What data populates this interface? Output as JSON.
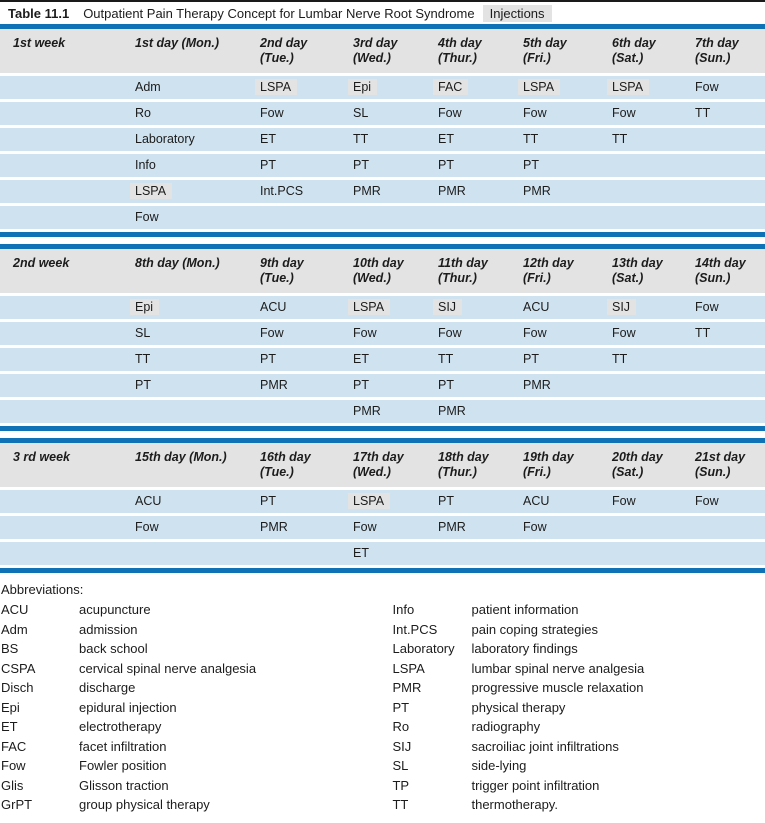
{
  "title": {
    "number": "Table 11.1",
    "caption": "Outpatient Pain Therapy Concept for Lumbar Nerve Root Syndrome",
    "tag": "Injections"
  },
  "weeks": [
    {
      "label": "1st week",
      "days": [
        {
          "l1": "1st day (Mon.)",
          "l2": ""
        },
        {
          "l1": "2nd day",
          "l2": "(Tue.)"
        },
        {
          "l1": "3rd day",
          "l2": "(Wed.)"
        },
        {
          "l1": "4th day",
          "l2": "(Thur.)"
        },
        {
          "l1": "5th day",
          "l2": "(Fri.)"
        },
        {
          "l1": "6th day",
          "l2": "(Sat.)"
        },
        {
          "l1": "7th day",
          "l2": "(Sun.)"
        }
      ],
      "rows": [
        [
          {
            "t": "Adm"
          },
          {
            "t": "LSPA",
            "h": true
          },
          {
            "t": "Epi",
            "h": true
          },
          {
            "t": "FAC",
            "h": true
          },
          {
            "t": "LSPA",
            "h": true
          },
          {
            "t": "LSPA",
            "h": true
          },
          {
            "t": "Fow"
          }
        ],
        [
          {
            "t": "Ro"
          },
          {
            "t": "Fow"
          },
          {
            "t": "SL"
          },
          {
            "t": "Fow"
          },
          {
            "t": "Fow"
          },
          {
            "t": "Fow"
          },
          {
            "t": "TT"
          }
        ],
        [
          {
            "t": "Laboratory"
          },
          {
            "t": "ET"
          },
          {
            "t": "TT"
          },
          {
            "t": "ET"
          },
          {
            "t": "TT"
          },
          {
            "t": "TT"
          },
          {
            "t": ""
          }
        ],
        [
          {
            "t": "Info"
          },
          {
            "t": "PT"
          },
          {
            "t": "PT"
          },
          {
            "t": "PT"
          },
          {
            "t": "PT"
          },
          {
            "t": ""
          },
          {
            "t": ""
          }
        ],
        [
          {
            "t": "LSPA",
            "h": true
          },
          {
            "t": "Int.PCS"
          },
          {
            "t": "PMR"
          },
          {
            "t": "PMR"
          },
          {
            "t": "PMR"
          },
          {
            "t": ""
          },
          {
            "t": ""
          }
        ],
        [
          {
            "t": "Fow"
          },
          {
            "t": ""
          },
          {
            "t": ""
          },
          {
            "t": ""
          },
          {
            "t": ""
          },
          {
            "t": ""
          },
          {
            "t": ""
          }
        ]
      ]
    },
    {
      "label": "2nd week",
      "days": [
        {
          "l1": "8th day (Mon.)",
          "l2": ""
        },
        {
          "l1": "9th day",
          "l2": "(Tue.)"
        },
        {
          "l1": "10th day",
          "l2": "(Wed.)"
        },
        {
          "l1": "11th day",
          "l2": "(Thur.)"
        },
        {
          "l1": "12th day",
          "l2": "(Fri.)"
        },
        {
          "l1": "13th day",
          "l2": "(Sat.)"
        },
        {
          "l1": "14th day",
          "l2": "(Sun.)"
        }
      ],
      "rows": [
        [
          {
            "t": "Epi",
            "h": true
          },
          {
            "t": "ACU"
          },
          {
            "t": "LSPA",
            "h": true
          },
          {
            "t": "SIJ",
            "h": true
          },
          {
            "t": "ACU"
          },
          {
            "t": "SIJ",
            "h": true
          },
          {
            "t": "Fow"
          }
        ],
        [
          {
            "t": "SL"
          },
          {
            "t": "Fow"
          },
          {
            "t": "Fow"
          },
          {
            "t": "Fow"
          },
          {
            "t": "Fow"
          },
          {
            "t": "Fow"
          },
          {
            "t": "TT"
          }
        ],
        [
          {
            "t": "TT"
          },
          {
            "t": "PT"
          },
          {
            "t": "ET"
          },
          {
            "t": "TT"
          },
          {
            "t": "PT"
          },
          {
            "t": "TT"
          },
          {
            "t": ""
          }
        ],
        [
          {
            "t": "PT"
          },
          {
            "t": "PMR"
          },
          {
            "t": "PT"
          },
          {
            "t": "PT"
          },
          {
            "t": "PMR"
          },
          {
            "t": ""
          },
          {
            "t": ""
          }
        ],
        [
          {
            "t": ""
          },
          {
            "t": ""
          },
          {
            "t": "PMR"
          },
          {
            "t": "PMR"
          },
          {
            "t": ""
          },
          {
            "t": ""
          },
          {
            "t": ""
          }
        ]
      ]
    },
    {
      "label": "3 rd week",
      "days": [
        {
          "l1": "15th day (Mon.)",
          "l2": ""
        },
        {
          "l1": "16th day",
          "l2": "(Tue.)"
        },
        {
          "l1": "17th day",
          "l2": "(Wed.)"
        },
        {
          "l1": "18th day",
          "l2": "(Thur.)"
        },
        {
          "l1": "19th day",
          "l2": "(Fri.)"
        },
        {
          "l1": "20th day",
          "l2": "(Sat.)"
        },
        {
          "l1": "21st day",
          "l2": "(Sun.)"
        }
      ],
      "rows": [
        [
          {
            "t": "ACU"
          },
          {
            "t": "PT"
          },
          {
            "t": "LSPA",
            "h": true
          },
          {
            "t": "PT"
          },
          {
            "t": "ACU"
          },
          {
            "t": "Fow"
          },
          {
            "t": "Fow"
          }
        ],
        [
          {
            "t": "Fow"
          },
          {
            "t": "PMR"
          },
          {
            "t": "Fow"
          },
          {
            "t": "PMR"
          },
          {
            "t": "Fow"
          },
          {
            "t": ""
          },
          {
            "t": ""
          }
        ],
        [
          {
            "t": ""
          },
          {
            "t": ""
          },
          {
            "t": "ET"
          },
          {
            "t": ""
          },
          {
            "t": ""
          },
          {
            "t": ""
          },
          {
            "t": ""
          }
        ]
      ]
    }
  ],
  "abbreviations": {
    "heading": "Abbreviations:",
    "left": [
      {
        "term": "ACU",
        "def": "acupuncture"
      },
      {
        "term": "Adm",
        "def": "admission"
      },
      {
        "term": "BS",
        "def": "back school"
      },
      {
        "term": "CSPA",
        "def": "cervical spinal nerve analgesia"
      },
      {
        "term": "Disch",
        "def": "discharge"
      },
      {
        "term": "Epi",
        "def": "epidural injection"
      },
      {
        "term": "ET",
        "def": "electrotherapy"
      },
      {
        "term": "FAC",
        "def": "facet infiltration"
      },
      {
        "term": "Fow",
        "def": "Fowler position"
      },
      {
        "term": "Glis",
        "def": "Glisson traction"
      },
      {
        "term": "GrPT",
        "def": "group physical therapy"
      }
    ],
    "right": [
      {
        "term": "Info",
        "def": "patient information"
      },
      {
        "term": "Int.PCS",
        "def": "pain coping strategies"
      },
      {
        "term": "Laboratory",
        "def": "laboratory findings"
      },
      {
        "term": "LSPA",
        "def": "lumbar spinal nerve analgesia"
      },
      {
        "term": "PMR",
        "def": "progressive muscle relaxation"
      },
      {
        "term": "PT",
        "def": "physical therapy"
      },
      {
        "term": "Ro",
        "def": "radiography"
      },
      {
        "term": "SIJ",
        "def": "sacroiliac joint infiltrations"
      },
      {
        "term": "SL",
        "def": "side-lying"
      },
      {
        "term": "TP",
        "def": "trigger point infiltration"
      },
      {
        "term": "TT",
        "def": "thermotherapy."
      }
    ]
  },
  "colors": {
    "bar_blue": "#0f72b6",
    "row_blue": "#cfe2f0",
    "header_gray": "#e4e3e3",
    "highlight_gray": "#e4e3e3"
  }
}
